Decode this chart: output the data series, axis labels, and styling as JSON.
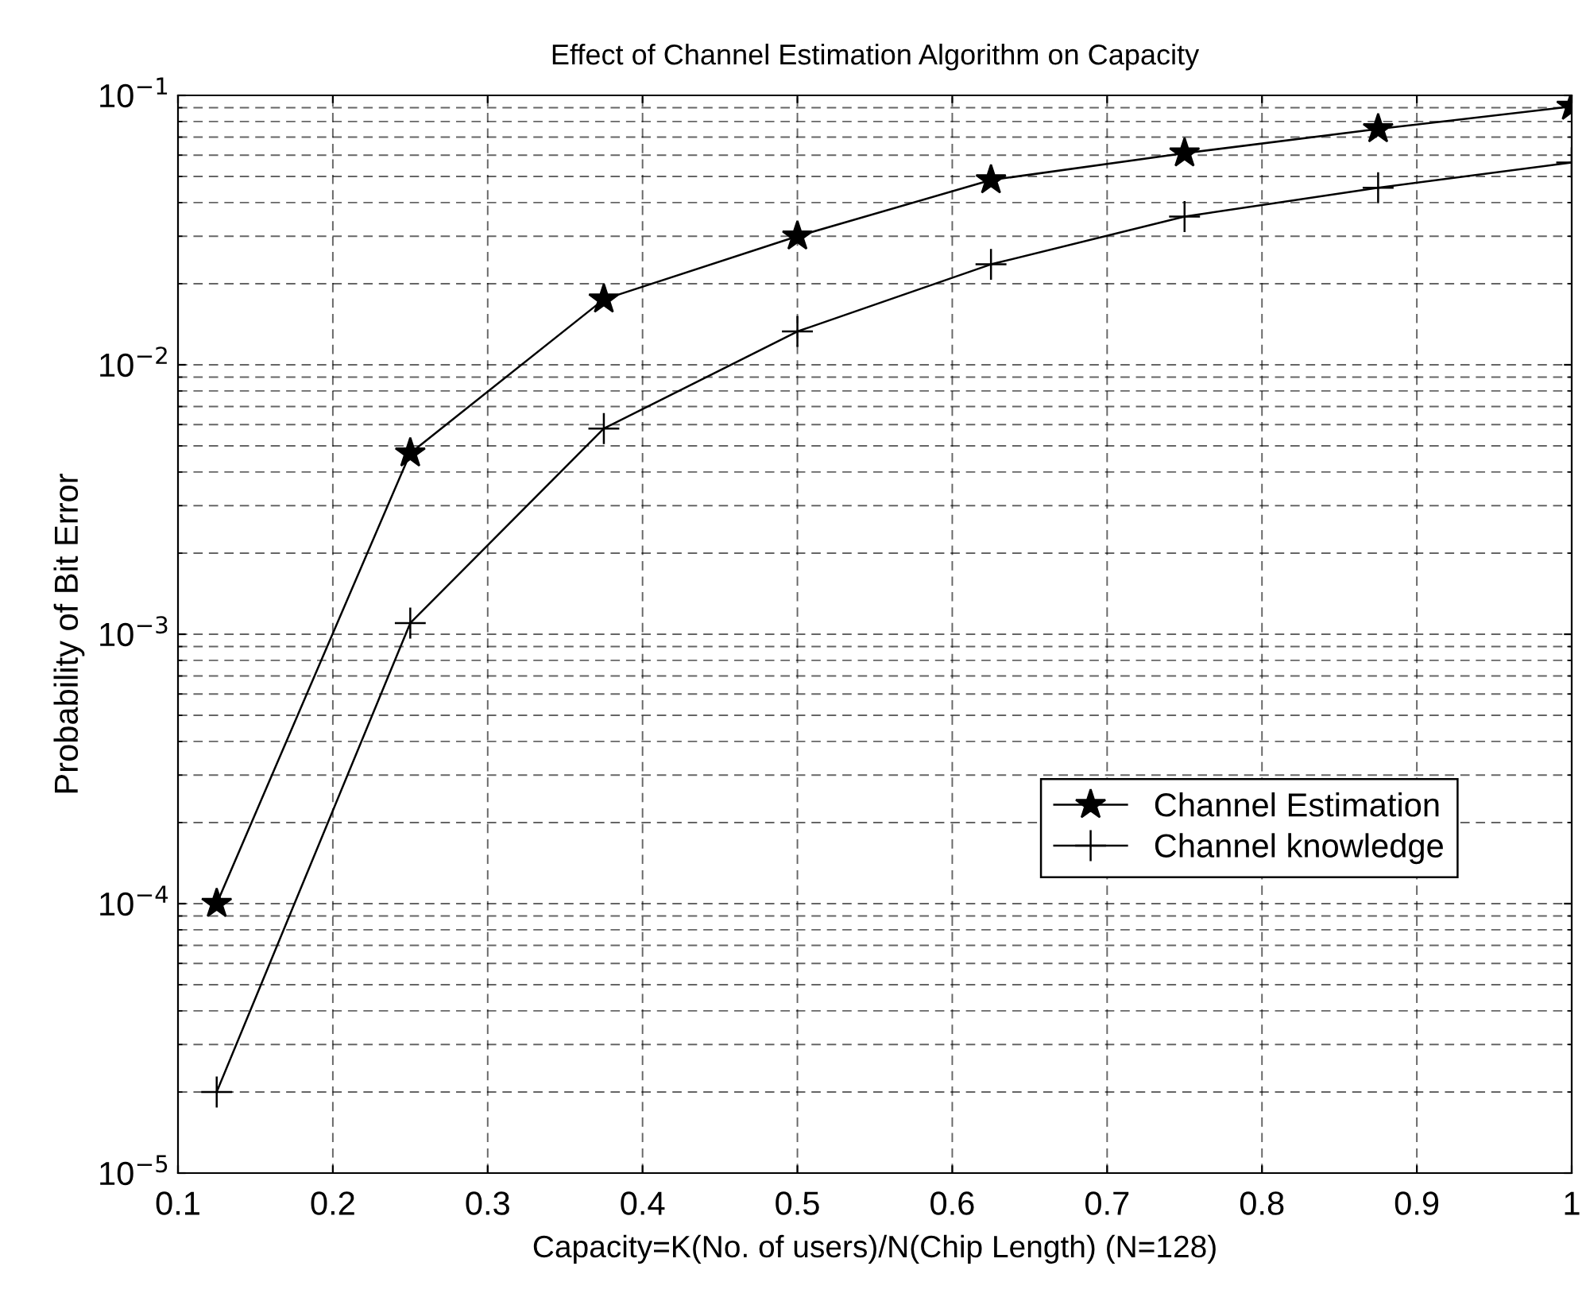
{
  "chart_data": {
    "type": "line",
    "title": "Effect of Channel Estimation Algorithm on Capacity",
    "xlabel": "Capacity=K(No. of users)/N(Chip Length) (N=128)",
    "ylabel": "Probability of Bit Error",
    "x": [
      0.125,
      0.25,
      0.375,
      0.5,
      0.625,
      0.75,
      0.875,
      1.0
    ],
    "series": [
      {
        "name": "Channel Estimation",
        "color": "#000000",
        "marker": "star",
        "values": [
          0.0001,
          0.0047,
          0.0175,
          0.03,
          0.0485,
          0.061,
          0.075,
          0.091
        ]
      },
      {
        "name": "Channel knowledge",
        "color": "#000000",
        "marker": "cross",
        "values": [
          2e-05,
          0.0011,
          0.0058,
          0.0133,
          0.0236,
          0.0355,
          0.0454,
          0.0563
        ]
      }
    ],
    "log": "y",
    "xlim": [
      0.1,
      1
    ],
    "ylim": [
      1e-05,
      0.1
    ],
    "xticks": [
      0.1,
      0.2,
      0.3,
      0.4,
      0.5,
      0.6,
      0.7,
      0.8,
      0.9,
      1
    ],
    "yticks": [
      {
        "value": 1e-05,
        "label": "10$^{−5}$"
      },
      {
        "value": 0.0001,
        "label": "10$^{−4}$"
      },
      {
        "value": 0.001,
        "label": "10$^{−3}$"
      },
      {
        "value": 0.01,
        "label": "10$^{−2}$"
      },
      {
        "value": 0.1,
        "label": "10$^{−1}$"
      }
    ],
    "grid": true,
    "legend": "right",
    "line_style": "solid"
  }
}
